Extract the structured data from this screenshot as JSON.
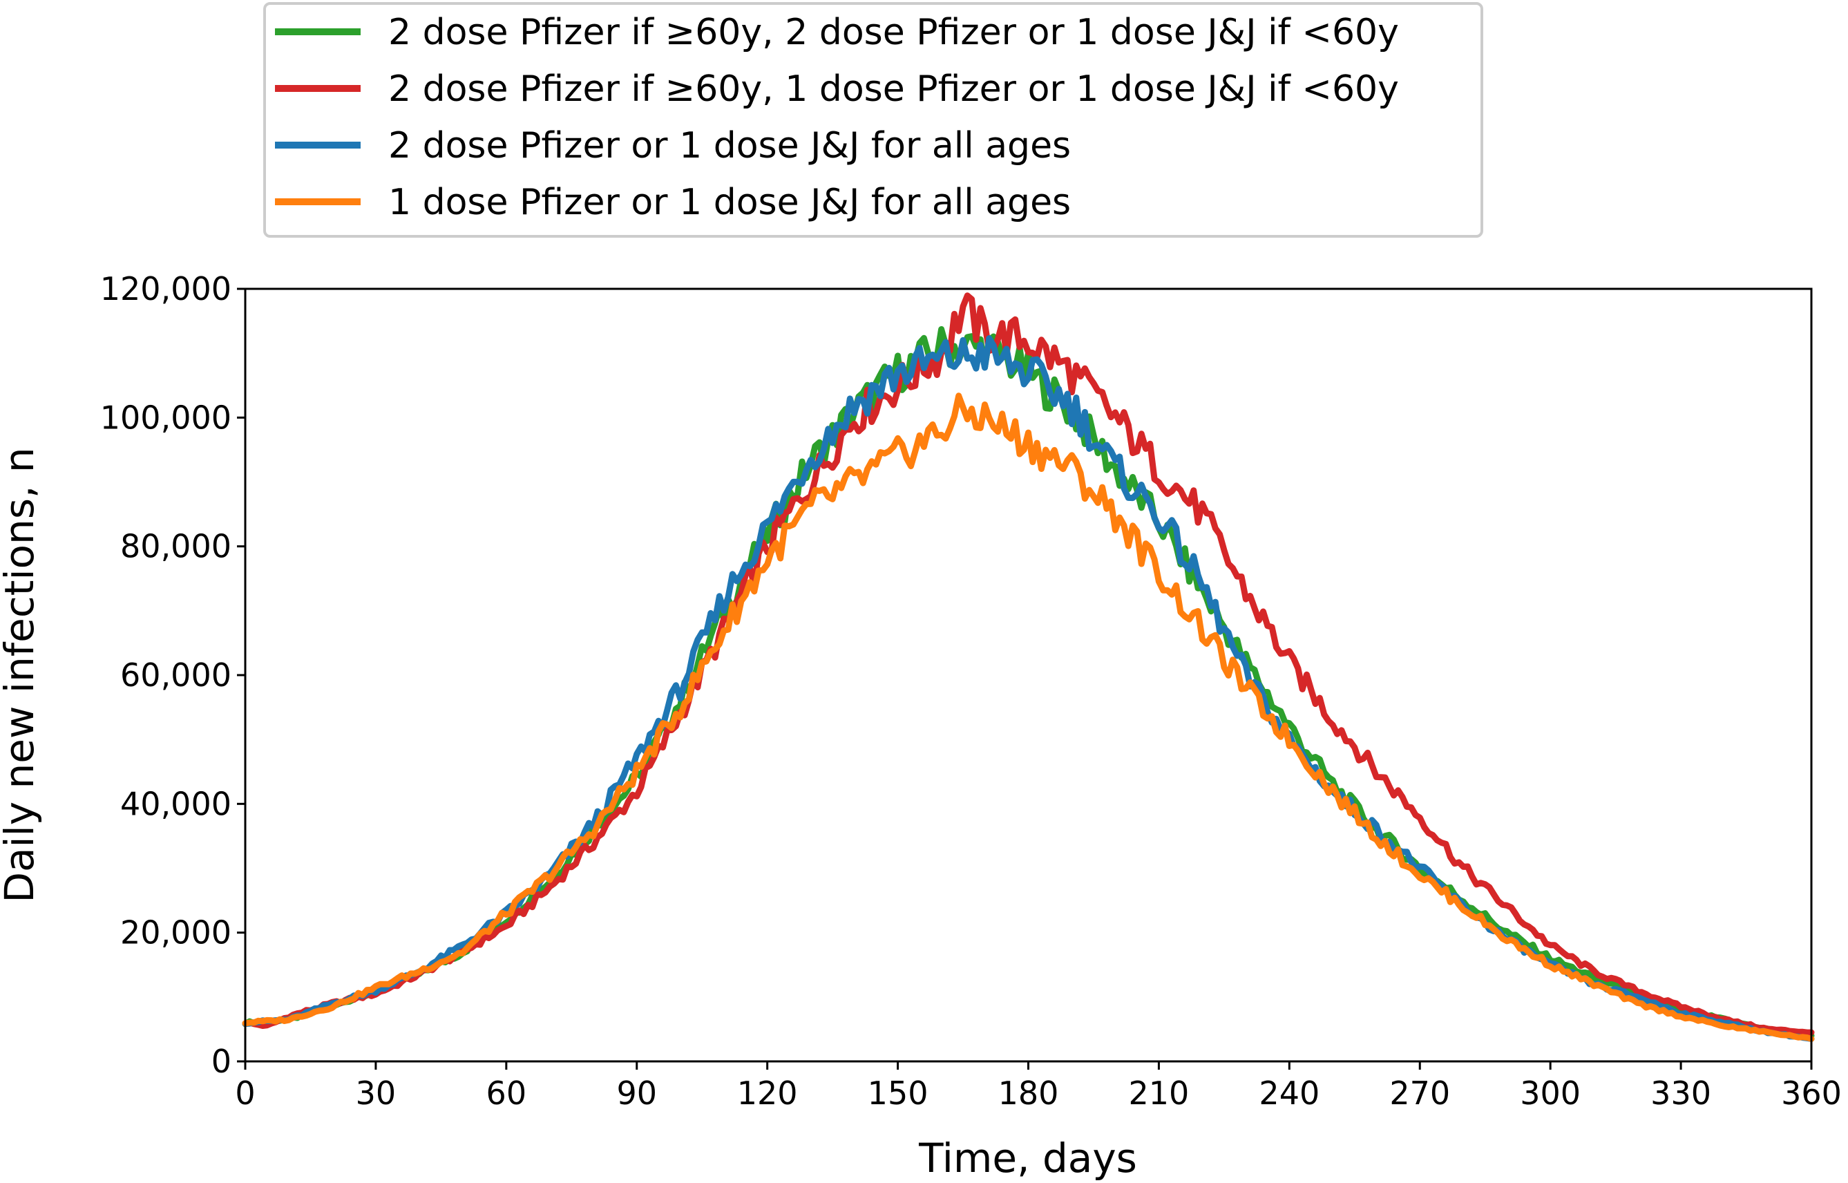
{
  "chart_data": {
    "type": "line",
    "xlabel": "Time, days",
    "ylabel": "Daily new infections, n",
    "xlim": [
      0,
      360
    ],
    "ylim": [
      0,
      120000
    ],
    "xticks": [
      0,
      30,
      60,
      90,
      120,
      150,
      180,
      210,
      240,
      270,
      300,
      330,
      360
    ],
    "yticks": [
      0,
      20000,
      40000,
      60000,
      80000,
      100000,
      120000
    ],
    "ytick_labels": [
      "0",
      "20,000",
      "40,000",
      "60,000",
      "80,000",
      "100,000",
      "120,000"
    ],
    "grid": false,
    "legend_position": "top",
    "series": [
      {
        "name": "2 dose Pfizer if ≥60y, 2 dose Pfizer or 1 dose J&J if <60y",
        "color": "#2ca02c",
        "x": [
          0,
          10,
          20,
          30,
          40,
          50,
          60,
          70,
          80,
          90,
          100,
          110,
          120,
          130,
          140,
          150,
          160,
          170,
          180,
          190,
          200,
          210,
          220,
          230,
          240,
          250,
          260,
          270,
          280,
          290,
          300,
          310,
          320,
          330,
          340,
          350,
          360
        ],
        "y": [
          6000,
          6500,
          8500,
          11000,
          13500,
          17000,
          22000,
          28000,
          36000,
          44000,
          56000,
          70000,
          82000,
          93000,
          101000,
          107000,
          111000,
          111000,
          107000,
          101000,
          92000,
          84000,
          73000,
          62000,
          52000,
          43000,
          36000,
          30000,
          25000,
          20000,
          16000,
          13000,
          10500,
          8000,
          6500,
          5000,
          4000
        ]
      },
      {
        "name": "2 dose Pfizer if ≥60y, 1 dose Pfizer or 1 dose J&J if <60y",
        "color": "#d62728",
        "x": [
          0,
          5,
          10,
          20,
          30,
          40,
          50,
          60,
          70,
          80,
          90,
          100,
          110,
          120,
          130,
          140,
          150,
          160,
          165,
          170,
          180,
          190,
          200,
          210,
          220,
          230,
          240,
          250,
          260,
          270,
          280,
          290,
          300,
          310,
          320,
          330,
          340,
          350,
          360
        ],
        "y": [
          6000,
          5500,
          7000,
          9000,
          10500,
          13500,
          17000,
          21000,
          27000,
          34000,
          42000,
          54000,
          67000,
          80000,
          90000,
          100000,
          105000,
          110000,
          117000,
          113000,
          112000,
          107000,
          100000,
          92000,
          85000,
          73000,
          62000,
          53000,
          45000,
          38000,
          30000,
          24000,
          18000,
          14000,
          11000,
          8500,
          6500,
          5000,
          4500
        ]
      },
      {
        "name": "2 dose Pfizer or 1 dose J&J for all ages",
        "color": "#1f77b4",
        "x": [
          0,
          10,
          20,
          30,
          40,
          50,
          60,
          70,
          80,
          90,
          100,
          110,
          120,
          130,
          140,
          150,
          160,
          170,
          180,
          190,
          200,
          210,
          220,
          230,
          240,
          250,
          260,
          270,
          280,
          290,
          300,
          310,
          320,
          330,
          340,
          350,
          360
        ],
        "y": [
          6000,
          6500,
          9000,
          11000,
          14000,
          18000,
          23000,
          29000,
          37000,
          47000,
          58000,
          72000,
          83000,
          94000,
          102000,
          107000,
          109000,
          110000,
          107000,
          102000,
          92000,
          85000,
          74000,
          60000,
          50000,
          42000,
          36000,
          30000,
          24000,
          19000,
          15000,
          12000,
          10000,
          7500,
          6000,
          4500,
          3500
        ]
      },
      {
        "name": "1 dose Pfizer or 1 dose J&J for all ages",
        "color": "#ff7f0e",
        "x": [
          0,
          10,
          20,
          30,
          40,
          50,
          60,
          70,
          80,
          90,
          100,
          110,
          120,
          130,
          140,
          150,
          160,
          165,
          170,
          180,
          190,
          200,
          210,
          220,
          230,
          240,
          250,
          260,
          270,
          280,
          290,
          300,
          310,
          320,
          330,
          340,
          350,
          360
        ],
        "y": [
          6000,
          6500,
          8500,
          11500,
          14000,
          17000,
          23000,
          29000,
          36000,
          45000,
          55000,
          67000,
          78000,
          86000,
          90000,
          94000,
          98000,
          101000,
          100000,
          96000,
          92000,
          85000,
          76000,
          67000,
          58000,
          50000,
          42000,
          35000,
          29000,
          24000,
          19000,
          15000,
          12000,
          9000,
          7000,
          5500,
          4500,
          3500
        ]
      }
    ]
  }
}
